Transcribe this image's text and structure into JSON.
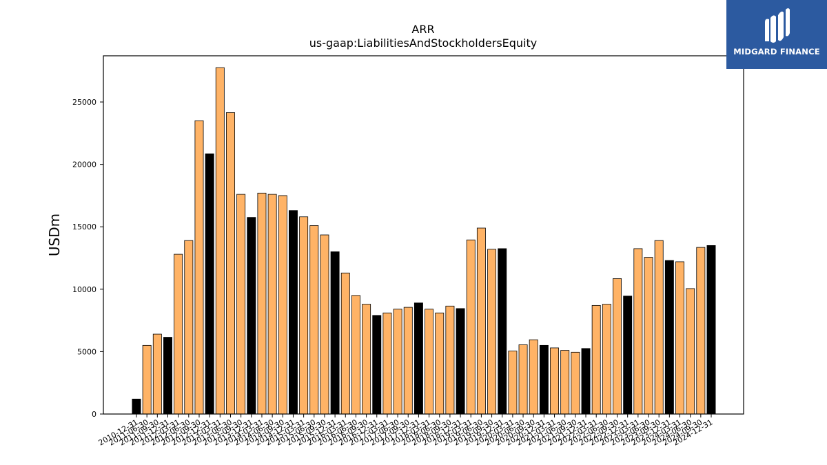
{
  "chart_data": {
    "type": "bar",
    "title": "ARR",
    "subtitle": "us-gaap:LiabilitiesAndStockholdersEquity",
    "xlabel": "",
    "ylabel": "USDm",
    "ylim": [
      0,
      28700
    ],
    "yticks": [
      0,
      5000,
      10000,
      15000,
      20000,
      25000
    ],
    "grid": false,
    "colors": {
      "quarter": "#ffb366",
      "year_end": "#000000",
      "edge": "#000000"
    },
    "categories": [
      "2010-12-31",
      "2011-06-30",
      "2011-09-30",
      "2011-12-31",
      "2012-03-31",
      "2012-06-30",
      "2012-09-30",
      "2012-12-31",
      "2013-03-31",
      "2013-06-30",
      "2013-09-30",
      "2013-12-31",
      "2014-03-31",
      "2014-06-30",
      "2014-09-30",
      "2014-12-31",
      "2015-03-31",
      "2015-06-30",
      "2015-09-30",
      "2015-12-31",
      "2016-03-31",
      "2016-06-30",
      "2016-09-30",
      "2016-12-31",
      "2017-03-31",
      "2017-06-30",
      "2017-09-30",
      "2017-12-31",
      "2018-03-31",
      "2018-06-30",
      "2018-09-30",
      "2018-12-31",
      "2019-03-31",
      "2019-06-30",
      "2019-09-30",
      "2019-12-31",
      "2020-03-31",
      "2020-06-30",
      "2020-09-30",
      "2020-12-31",
      "2021-03-31",
      "2021-06-30",
      "2021-09-30",
      "2021-12-31",
      "2022-03-31",
      "2022-06-30",
      "2022-09-30",
      "2022-12-31",
      "2023-03-31",
      "2023-06-30",
      "2023-09-30",
      "2023-12-31",
      "2024-03-31",
      "2024-06-30",
      "2024-09-30",
      "2024-12-31"
    ],
    "values": [
      1200,
      5500,
      6400,
      6150,
      12800,
      13900,
      23500,
      20850,
      27750,
      24150,
      17600,
      15750,
      17700,
      17600,
      17500,
      16300,
      15800,
      15100,
      14350,
      13000,
      11300,
      9500,
      8800,
      7900,
      8100,
      8400,
      8550,
      8900,
      8400,
      8100,
      8650,
      8450,
      13950,
      14900,
      13200,
      13250,
      5050,
      5550,
      5950,
      5500,
      5300,
      5100,
      4950,
      5250,
      8700,
      8800,
      10850,
      9450,
      13250,
      12550,
      13900,
      12300,
      12200,
      10050,
      13350,
      13500
    ],
    "year_end": [
      true,
      false,
      false,
      true,
      false,
      false,
      false,
      true,
      false,
      false,
      false,
      true,
      false,
      false,
      false,
      true,
      false,
      false,
      false,
      true,
      false,
      false,
      false,
      true,
      false,
      false,
      false,
      true,
      false,
      false,
      false,
      true,
      false,
      false,
      false,
      true,
      false,
      false,
      false,
      true,
      false,
      false,
      false,
      true,
      false,
      false,
      false,
      true,
      false,
      false,
      false,
      true,
      false,
      false,
      false,
      true
    ]
  },
  "logo": {
    "text": "MIDGARD FINANCE",
    "background": "#2c5aa0"
  }
}
